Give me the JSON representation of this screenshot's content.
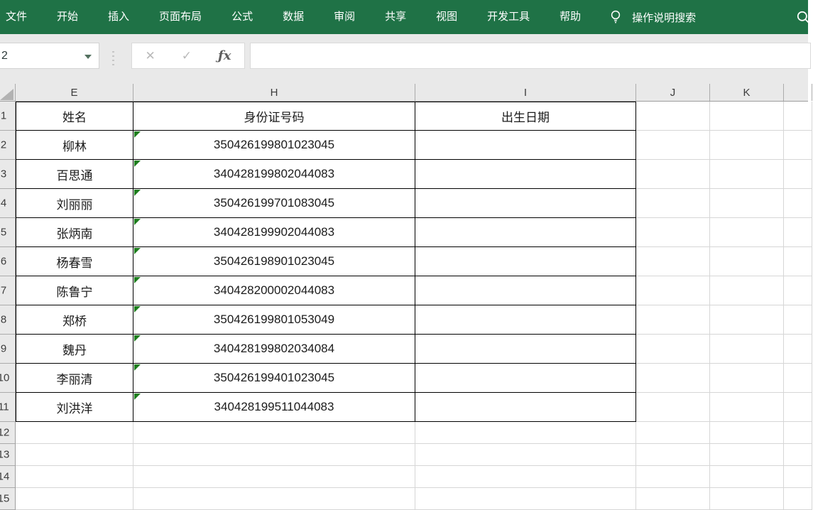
{
  "ribbon": {
    "color": "#1F7246",
    "tabs": [
      "文件",
      "开始",
      "插入",
      "页面布局",
      "公式",
      "数据",
      "审阅",
      "共享",
      "视图",
      "开发工具",
      "帮助"
    ],
    "tell_me_label": "操作说明搜索",
    "icons": {
      "tell_me": "lightbulb-icon",
      "search": "magnifier-icon"
    }
  },
  "formula_bar": {
    "name_box_value": "2",
    "cancel_icon": "✕",
    "enter_icon": "✓",
    "fx_icon": "ƒx",
    "formula_value": ""
  },
  "sheet": {
    "column_letters": [
      "E",
      "H",
      "I",
      "J",
      "K",
      ""
    ],
    "row_numbers": [
      "1",
      "2",
      "3",
      "4",
      "5",
      "6",
      "7",
      "8",
      "9",
      "10",
      "11",
      "12",
      "13",
      "14",
      "15"
    ],
    "error_indicator_color": "#1E7E1E",
    "table": {
      "headers": [
        "姓名",
        "身份证号码",
        "出生日期"
      ],
      "rows": [
        {
          "name": "柳林",
          "id": "350426199801023045",
          "birth": ""
        },
        {
          "name": "百思通",
          "id": "340428199802044083",
          "birth": ""
        },
        {
          "name": "刘丽丽",
          "id": "350426199701083045",
          "birth": ""
        },
        {
          "name": "张炳南",
          "id": "340428199902044083",
          "birth": ""
        },
        {
          "name": "杨春雪",
          "id": "350426198901023045",
          "birth": ""
        },
        {
          "name": "陈鲁宁",
          "id": "340428200002044083",
          "birth": ""
        },
        {
          "name": "郑桥",
          "id": "350426199801053049",
          "birth": ""
        },
        {
          "name": "魏丹",
          "id": "340428199802034084",
          "birth": ""
        },
        {
          "name": "李丽清",
          "id": "350426199401023045",
          "birth": ""
        },
        {
          "name": "刘洪洋",
          "id": "340428199511044083",
          "birth": ""
        }
      ]
    }
  }
}
